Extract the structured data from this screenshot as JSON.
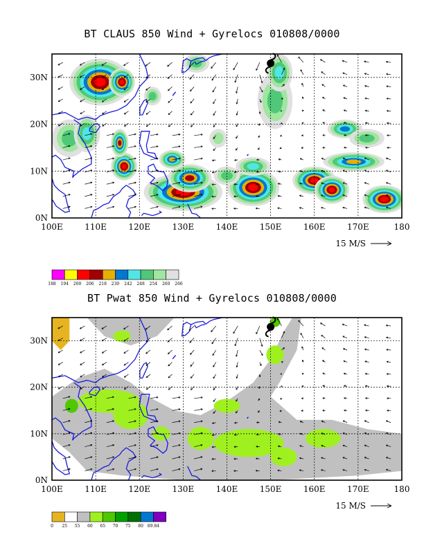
{
  "panels": [
    {
      "title": "BT CLAUS 850 Wind + Gyrelocs 010808/0000",
      "lat_labels": [
        "30N",
        "20N",
        "10N",
        "0N"
      ],
      "lon_labels": [
        "100E",
        "110E",
        "120E",
        "130E",
        "140E",
        "150E",
        "160E",
        "170E",
        "180"
      ],
      "vector_label": "15 M/S",
      "colorbar": {
        "colors": [
          "#ff00ff",
          "#ffff00",
          "#ff0000",
          "#a00000",
          "#e6b000",
          "#0078d0",
          "#50e6e6",
          "#50c878",
          "#a0e6a0",
          "#e0e0e0"
        ],
        "labels": [
          "188",
          "194",
          "200",
          "206",
          "218",
          "230",
          "242",
          "248",
          "254",
          "260",
          "266"
        ]
      }
    },
    {
      "title": "BT Pwat 850 Wind + Gyrelocs 010808/0000",
      "lat_labels": [
        "30N",
        "20N",
        "10N",
        "0N"
      ],
      "lon_labels": [
        "100E",
        "110E",
        "120E",
        "130E",
        "140E",
        "150E",
        "160E",
        "170E",
        "180"
      ],
      "vector_label": "15 M/S",
      "colorbar": {
        "colors": [
          "#e6b420",
          "#ffffff",
          "#c0c0c0",
          "#a0f020",
          "#50c800",
          "#00a000",
          "#007000",
          "#0078d0",
          "#8000c0"
        ],
        "labels": [
          "0",
          "25",
          "55",
          "60",
          "65",
          "70",
          "75",
          "80",
          "89.84"
        ]
      }
    }
  ],
  "map_extent": {
    "lon": [
      100,
      180
    ],
    "lat": [
      0,
      35
    ]
  },
  "gyre_symbol": {
    "lon": 150,
    "lat": 33,
    "name": "tropical-cyclone-icon"
  }
}
